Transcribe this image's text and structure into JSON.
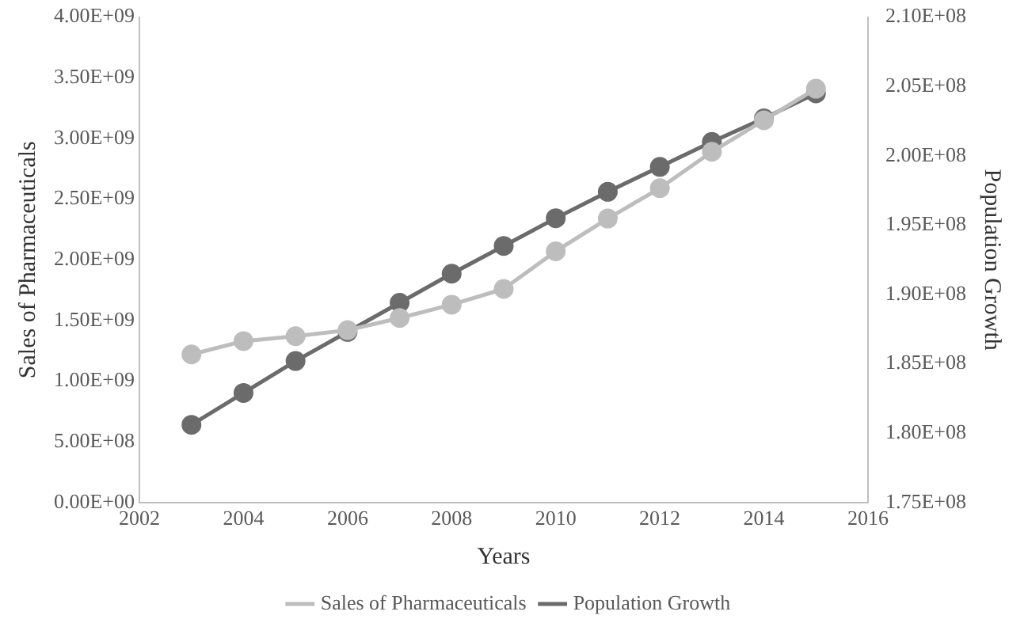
{
  "chart_data": {
    "type": "line",
    "xlabel": "Years",
    "ylabel": "Sales of Pharmaceuticals",
    "y2label": "Population Growth",
    "x": [
      2003,
      2004,
      2005,
      2006,
      2007,
      2008,
      2009,
      2010,
      2011,
      2012,
      2013,
      2014,
      2015
    ],
    "series": [
      {
        "name": "Sales of Pharmaceuticals",
        "color": "#bdbdbd",
        "values": [
          1220000000.0,
          1330000000.0,
          1370000000.0,
          1420000000.0,
          1520000000.0,
          1630000000.0,
          1760000000.0,
          2070000000.0,
          2340000000.0,
          2590000000.0,
          2890000000.0,
          3150000000.0,
          3410000000.0
        ]
      },
      {
        "name": "Population Growth",
        "color": "#6b6b6b",
        "axis": "y2",
        "values": [
          180600000.0,
          182900000.0,
          185200000.0,
          187300000.0,
          189400000.0,
          191500000.0,
          193500000.0,
          195500000.0,
          197400000.0,
          199200000.0,
          201000000.0,
          202700000.0,
          204500000.0
        ]
      }
    ],
    "xlim": [
      2002,
      2016
    ],
    "xticks": [
      2002,
      2004,
      2006,
      2008,
      2010,
      2012,
      2014,
      2016
    ],
    "ylim": [
      0,
      4000000000
    ],
    "yticks": [
      {
        "value": 0,
        "label": "0.00E+00"
      },
      {
        "value": 500000000,
        "label": "5.00E+08"
      },
      {
        "value": 1000000000,
        "label": "1.00E+09"
      },
      {
        "value": 1500000000,
        "label": "1.50E+09"
      },
      {
        "value": 2000000000,
        "label": "2.00E+09"
      },
      {
        "value": 2500000000,
        "label": "2.50E+09"
      },
      {
        "value": 3000000000,
        "label": "3.00E+09"
      },
      {
        "value": 3500000000,
        "label": "3.50E+09"
      },
      {
        "value": 4000000000,
        "label": "4.00E+09"
      }
    ],
    "y2lim": [
      175000000,
      210000000
    ],
    "y2ticks": [
      {
        "value": 175000000,
        "label": "1.75E+08"
      },
      {
        "value": 180000000,
        "label": "1.80E+08"
      },
      {
        "value": 185000000,
        "label": "1.85E+08"
      },
      {
        "value": 190000000,
        "label": "1.90E+08"
      },
      {
        "value": 195000000,
        "label": "1.95E+08"
      },
      {
        "value": 200000000,
        "label": "2.00E+08"
      },
      {
        "value": 205000000,
        "label": "2.05E+08"
      },
      {
        "value": 210000000,
        "label": "2.10E+08"
      }
    ],
    "grid": false,
    "legend": "bottom",
    "marker": "circle",
    "line_style": "solid"
  }
}
